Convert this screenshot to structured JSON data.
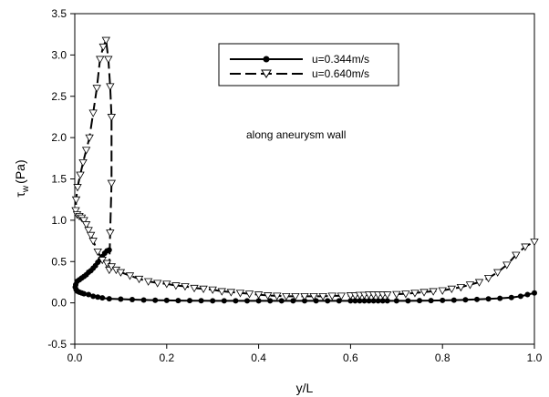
{
  "chart_data": {
    "type": "line",
    "xlabel": "y/L",
    "ylabel_main": "τ",
    "ylabel_sub": "w",
    "ylabel_unit": "(Pa)",
    "xlim": [
      0,
      1
    ],
    "ylim": [
      -0.5,
      3.5
    ],
    "xticks": [
      "0.0",
      "0.2",
      "0.4",
      "0.6",
      "0.8",
      "1.0"
    ],
    "yticks": [
      "-0.5",
      "0.0",
      "0.5",
      "1.0",
      "1.5",
      "2.0",
      "2.5",
      "3.0",
      "3.5"
    ],
    "annotation": "along aneurysm wall",
    "legend_position": "top-right",
    "grid": false,
    "series": [
      {
        "name": "u=0.344m/s",
        "line_style": "solid",
        "marker": "filled-circle",
        "color": "#000000",
        "points": [
          [
            0.075,
            0.64
          ],
          [
            0.07,
            0.63
          ],
          [
            0.065,
            0.6
          ],
          [
            0.06,
            0.56
          ],
          [
            0.055,
            0.52
          ],
          [
            0.05,
            0.49
          ],
          [
            0.045,
            0.45
          ],
          [
            0.04,
            0.42
          ],
          [
            0.035,
            0.39
          ],
          [
            0.03,
            0.37
          ],
          [
            0.025,
            0.34
          ],
          [
            0.02,
            0.32
          ],
          [
            0.015,
            0.3
          ],
          [
            0.01,
            0.28
          ],
          [
            0.005,
            0.26
          ],
          [
            0.002,
            0.22
          ],
          [
            0.001,
            0.19
          ],
          [
            0.003,
            0.16
          ],
          [
            0.006,
            0.14
          ],
          [
            0.01,
            0.13
          ],
          [
            0.015,
            0.12
          ],
          [
            0.02,
            0.11
          ],
          [
            0.03,
            0.1
          ],
          [
            0.04,
            0.08
          ],
          [
            0.05,
            0.07
          ],
          [
            0.06,
            0.06
          ],
          [
            0.075,
            0.05
          ],
          [
            0.1,
            0.045
          ],
          [
            0.125,
            0.04
          ],
          [
            0.15,
            0.035
          ],
          [
            0.175,
            0.032
          ],
          [
            0.2,
            0.03
          ],
          [
            0.225,
            0.028
          ],
          [
            0.25,
            0.027
          ],
          [
            0.275,
            0.026
          ],
          [
            0.3,
            0.025
          ],
          [
            0.325,
            0.025
          ],
          [
            0.35,
            0.025
          ],
          [
            0.375,
            0.025
          ],
          [
            0.4,
            0.025
          ],
          [
            0.425,
            0.025
          ],
          [
            0.45,
            0.025
          ],
          [
            0.475,
            0.025
          ],
          [
            0.5,
            0.025
          ],
          [
            0.525,
            0.025
          ],
          [
            0.55,
            0.025
          ],
          [
            0.575,
            0.025
          ],
          [
            0.6,
            0.025
          ],
          [
            0.61,
            0.025
          ],
          [
            0.62,
            0.025
          ],
          [
            0.63,
            0.025
          ],
          [
            0.64,
            0.025
          ],
          [
            0.65,
            0.025
          ],
          [
            0.66,
            0.025
          ],
          [
            0.67,
            0.025
          ],
          [
            0.68,
            0.025
          ],
          [
            0.7,
            0.025
          ],
          [
            0.725,
            0.025
          ],
          [
            0.75,
            0.027
          ],
          [
            0.775,
            0.028
          ],
          [
            0.8,
            0.03
          ],
          [
            0.825,
            0.033
          ],
          [
            0.85,
            0.037
          ],
          [
            0.875,
            0.042
          ],
          [
            0.9,
            0.048
          ],
          [
            0.925,
            0.055
          ],
          [
            0.95,
            0.065
          ],
          [
            0.97,
            0.08
          ],
          [
            0.985,
            0.1
          ],
          [
            1.0,
            0.12
          ]
        ]
      },
      {
        "name": "u=0.640m/s",
        "line_style": "dashed",
        "marker": "open-triangle-down",
        "color": "#000000",
        "points": [
          [
            0.075,
            0.4
          ],
          [
            0.077,
            0.85
          ],
          [
            0.08,
            1.45
          ],
          [
            0.08,
            2.25
          ],
          [
            0.077,
            2.62
          ],
          [
            0.073,
            2.95
          ],
          [
            0.068,
            3.18
          ],
          [
            0.062,
            3.1
          ],
          [
            0.055,
            2.95
          ],
          [
            0.048,
            2.6
          ],
          [
            0.04,
            2.3
          ],
          [
            0.032,
            2.0
          ],
          [
            0.025,
            1.85
          ],
          [
            0.018,
            1.7
          ],
          [
            0.012,
            1.55
          ],
          [
            0.006,
            1.4
          ],
          [
            0.003,
            1.25
          ],
          [
            0.002,
            1.12
          ],
          [
            0.005,
            1.07
          ],
          [
            0.01,
            1.05
          ],
          [
            0.015,
            1.03
          ],
          [
            0.02,
            1.0
          ],
          [
            0.025,
            0.95
          ],
          [
            0.03,
            0.88
          ],
          [
            0.035,
            0.82
          ],
          [
            0.04,
            0.75
          ],
          [
            0.05,
            0.62
          ],
          [
            0.06,
            0.52
          ],
          [
            0.07,
            0.48
          ],
          [
            0.08,
            0.44
          ],
          [
            0.09,
            0.4
          ],
          [
            0.1,
            0.37
          ],
          [
            0.12,
            0.33
          ],
          [
            0.14,
            0.29
          ],
          [
            0.16,
            0.26
          ],
          [
            0.18,
            0.24
          ],
          [
            0.2,
            0.23
          ],
          [
            0.22,
            0.21
          ],
          [
            0.24,
            0.2
          ],
          [
            0.26,
            0.18
          ],
          [
            0.28,
            0.17
          ],
          [
            0.3,
            0.16
          ],
          [
            0.32,
            0.14
          ],
          [
            0.34,
            0.13
          ],
          [
            0.36,
            0.12
          ],
          [
            0.38,
            0.11
          ],
          [
            0.4,
            0.1
          ],
          [
            0.42,
            0.09
          ],
          [
            0.44,
            0.085
          ],
          [
            0.46,
            0.08
          ],
          [
            0.48,
            0.08
          ],
          [
            0.5,
            0.08
          ],
          [
            0.52,
            0.08
          ],
          [
            0.54,
            0.08
          ],
          [
            0.56,
            0.085
          ],
          [
            0.58,
            0.085
          ],
          [
            0.6,
            0.09
          ],
          [
            0.61,
            0.09
          ],
          [
            0.62,
            0.095
          ],
          [
            0.63,
            0.095
          ],
          [
            0.64,
            0.1
          ],
          [
            0.65,
            0.1
          ],
          [
            0.66,
            0.1
          ],
          [
            0.67,
            0.1
          ],
          [
            0.68,
            0.1
          ],
          [
            0.7,
            0.105
          ],
          [
            0.72,
            0.11
          ],
          [
            0.74,
            0.12
          ],
          [
            0.76,
            0.13
          ],
          [
            0.78,
            0.14
          ],
          [
            0.8,
            0.15
          ],
          [
            0.82,
            0.17
          ],
          [
            0.84,
            0.19
          ],
          [
            0.86,
            0.22
          ],
          [
            0.88,
            0.25
          ],
          [
            0.9,
            0.3
          ],
          [
            0.92,
            0.37
          ],
          [
            0.94,
            0.46
          ],
          [
            0.96,
            0.58
          ],
          [
            0.98,
            0.68
          ],
          [
            1.0,
            0.74
          ]
        ]
      }
    ]
  }
}
